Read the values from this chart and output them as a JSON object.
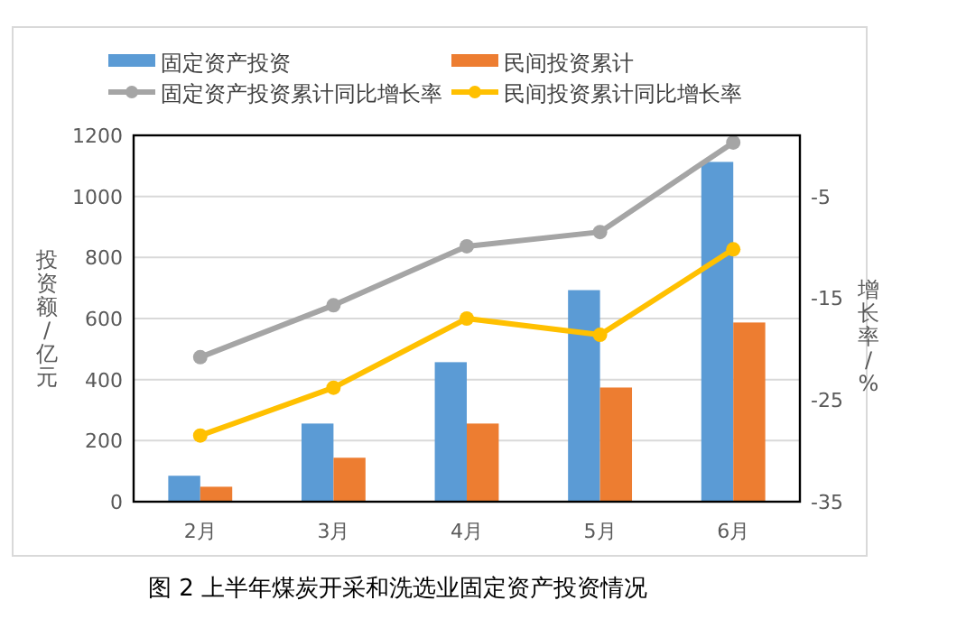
{
  "chart_data": {
    "type": "bar",
    "title": "图 2  上半年煤炭开采和洗选业固定资产投资情况",
    "ylabel": "投资额/亿元",
    "y2label": "增长率/%",
    "categories": [
      "2月",
      "3月",
      "4月",
      "5月",
      "6月"
    ],
    "series": [
      {
        "name": "固定资产投资",
        "color": "#5b9bd5",
        "values": [
          85,
          256,
          457,
          693,
          1113
        ]
      },
      {
        "name": "民间投资累计",
        "color": "#ed7d31",
        "values": [
          49,
          144,
          256,
          374,
          587
        ]
      },
      {
        "name": "固定资产投资累计同比增长率",
        "type": "line",
        "axis": "y2",
        "marker": "circle",
        "color": "#a5a5a5",
        "values": [
          -20.8,
          -15.7,
          -9.9,
          -8.5,
          0.3
        ]
      },
      {
        "name": "民间投资累计同比增长率",
        "type": "line",
        "axis": "y2",
        "marker": "circle",
        "color": "#ffc000",
        "values": [
          -28.5,
          -23.8,
          -17,
          -18.6,
          -10.2
        ]
      }
    ],
    "ylim": [
      0,
      1200
    ],
    "yticks": [
      0,
      200,
      400,
      600,
      800,
      1000,
      1200
    ],
    "y2lim": [
      -35,
      1
    ],
    "y2ticks": [
      -35,
      -25,
      -15,
      -5
    ],
    "grid": "y",
    "legend": "top"
  }
}
